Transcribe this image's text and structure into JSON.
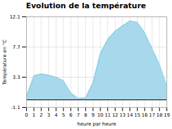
{
  "chart_data": {
    "type": "area",
    "title": "Evolution de la température",
    "xlabel": "heure par heure",
    "ylabel": "Température en °C",
    "x": [
      0,
      1,
      2,
      3,
      4,
      5,
      6,
      7,
      8,
      9,
      10,
      11,
      12,
      13,
      14,
      15,
      16,
      17,
      18,
      19
    ],
    "values": [
      0.5,
      3.5,
      3.8,
      3.6,
      3.3,
      2.8,
      1.0,
      0.2,
      0.3,
      2.5,
      6.8,
      8.8,
      10.0,
      10.8,
      11.5,
      11.3,
      9.8,
      7.5,
      5.2,
      2.0
    ],
    "baseline": 0.0,
    "color": "#a8d8ec",
    "line_style": "dotted",
    "xlim": [
      0,
      19
    ],
    "xticks": [
      0,
      1,
      2,
      3,
      4,
      5,
      6,
      7,
      8,
      9,
      10,
      11,
      12,
      13,
      14,
      15,
      16,
      17,
      18,
      19
    ],
    "ylim": [
      -1.1,
      12.1
    ],
    "yticks": [
      -1.1,
      3.3,
      7.7,
      12.1
    ],
    "grid": true
  }
}
